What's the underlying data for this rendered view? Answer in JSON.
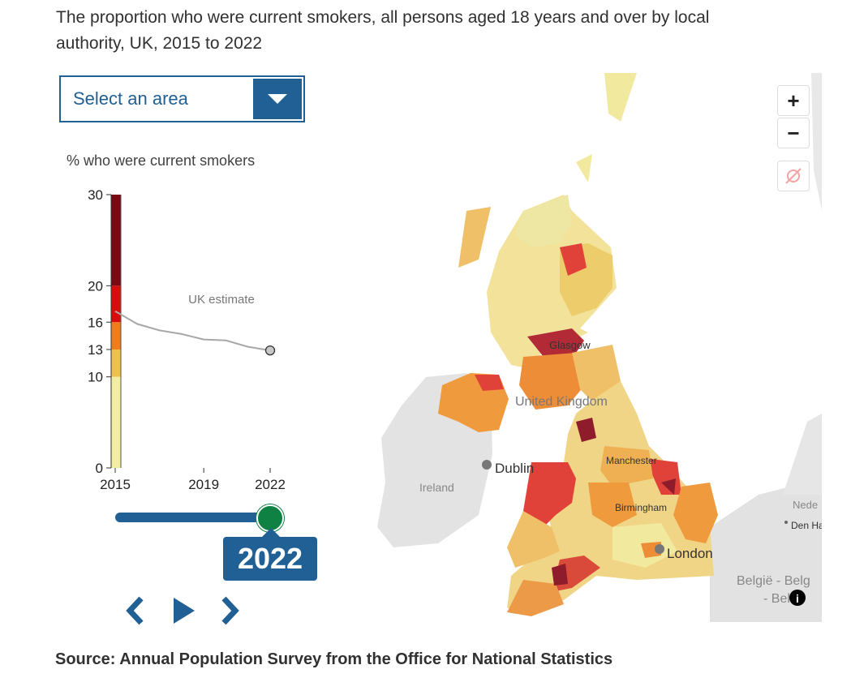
{
  "title": "The proportion who were current smokers, all persons aged 18 years and over by local authority, UK, 2015 to 2022",
  "select": {
    "label": "Select an area"
  },
  "chart_data": {
    "type": "line",
    "ylabel": "% who were current smokers",
    "ylim": [
      0,
      30
    ],
    "y_ticks": [
      0,
      10,
      13,
      16,
      20,
      30
    ],
    "x_ticks": [
      "2015",
      "2019",
      "2022"
    ],
    "legend_bands": [
      {
        "from": 0,
        "to": 10,
        "color": "#f1eda1"
      },
      {
        "from": 10,
        "to": 13,
        "color": "#edc14e"
      },
      {
        "from": 13,
        "to": 16,
        "color": "#ef7d1c"
      },
      {
        "from": 16,
        "to": 20,
        "color": "#d90c0c"
      },
      {
        "from": 20,
        "to": 30,
        "color": "#7a0a12"
      }
    ],
    "series": [
      {
        "name": "UK estimate",
        "x": [
          2015,
          2016,
          2017,
          2018,
          2019,
          2020,
          2021,
          2022
        ],
        "values": [
          17.2,
          15.8,
          15.1,
          14.7,
          14.1,
          14.0,
          13.3,
          12.9
        ]
      }
    ]
  },
  "slider": {
    "year": "2022"
  },
  "controls": {
    "prev": "previous",
    "play": "play",
    "next": "next"
  },
  "map": {
    "labels": {
      "glasgow": "Glasgow",
      "uk": "United Kingdom",
      "dublin": "Dublin",
      "ireland": "Ireland",
      "manchester": "Manchester",
      "birmingham": "Birmingham",
      "london": "London",
      "belgie1": "België - Belg",
      "belgie2": "- Bel",
      "ned": "Nede",
      "denha": "Den Ha"
    },
    "zoom_in": "+",
    "zoom_out": "−"
  },
  "source": "Source: Annual Population Survey from the Office for National Statistics"
}
